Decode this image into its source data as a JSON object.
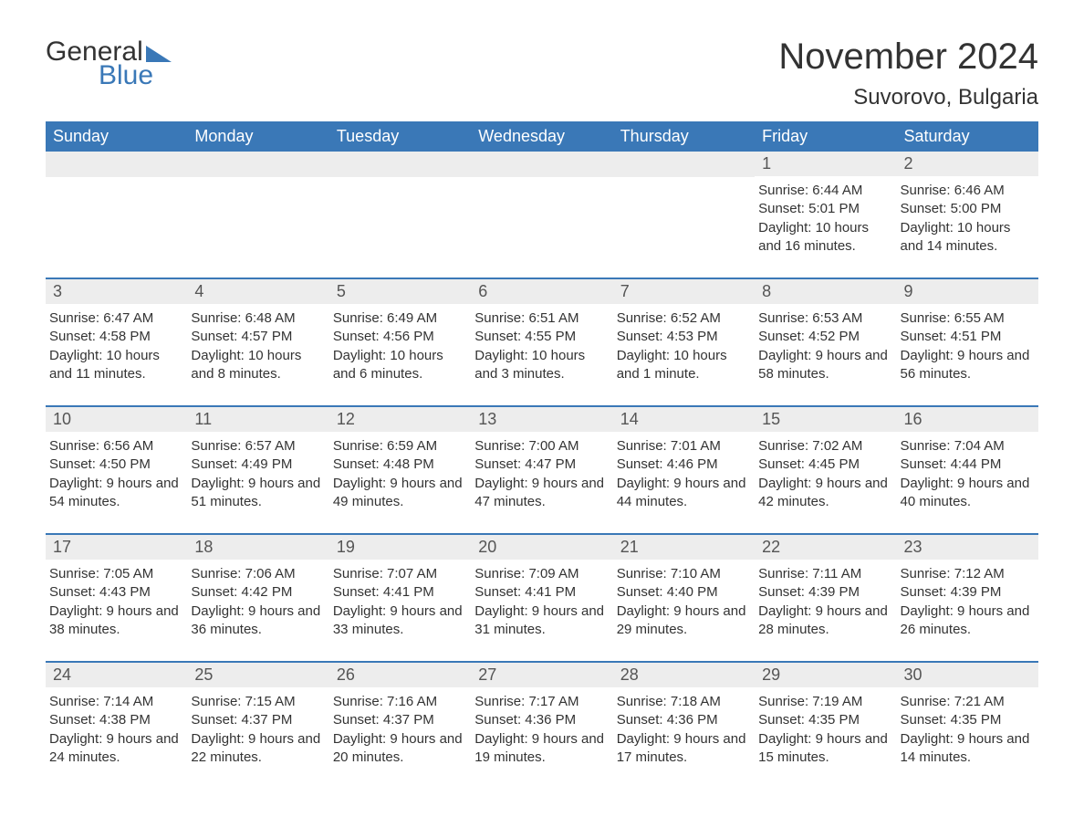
{
  "logo": {
    "word1": "General",
    "word2": "Blue"
  },
  "title": "November 2024",
  "location": "Suvorovo, Bulgaria",
  "weekday_labels": [
    "Sunday",
    "Monday",
    "Tuesday",
    "Wednesday",
    "Thursday",
    "Friday",
    "Saturday"
  ],
  "colors": {
    "accent": "#3a78b7",
    "header_text": "#ffffff",
    "daynum_bg": "#ededed",
    "text": "#333333",
    "background": "#ffffff"
  },
  "typography": {
    "title_fontsize": 40,
    "location_fontsize": 24,
    "weekday_fontsize": 18,
    "daynum_fontsize": 18,
    "body_fontsize": 15
  },
  "layout": {
    "columns": 7,
    "rows": 5,
    "first_weekday": "Sunday"
  },
  "labels": {
    "sunrise": "Sunrise",
    "sunset": "Sunset",
    "daylight": "Daylight"
  },
  "weeks": [
    [
      {
        "empty": true
      },
      {
        "empty": true
      },
      {
        "empty": true
      },
      {
        "empty": true
      },
      {
        "empty": true
      },
      {
        "day": "1",
        "sunrise": "6:44 AM",
        "sunset": "5:01 PM",
        "daylight": "10 hours and 16 minutes."
      },
      {
        "day": "2",
        "sunrise": "6:46 AM",
        "sunset": "5:00 PM",
        "daylight": "10 hours and 14 minutes."
      }
    ],
    [
      {
        "day": "3",
        "sunrise": "6:47 AM",
        "sunset": "4:58 PM",
        "daylight": "10 hours and 11 minutes."
      },
      {
        "day": "4",
        "sunrise": "6:48 AM",
        "sunset": "4:57 PM",
        "daylight": "10 hours and 8 minutes."
      },
      {
        "day": "5",
        "sunrise": "6:49 AM",
        "sunset": "4:56 PM",
        "daylight": "10 hours and 6 minutes."
      },
      {
        "day": "6",
        "sunrise": "6:51 AM",
        "sunset": "4:55 PM",
        "daylight": "10 hours and 3 minutes."
      },
      {
        "day": "7",
        "sunrise": "6:52 AM",
        "sunset": "4:53 PM",
        "daylight": "10 hours and 1 minute."
      },
      {
        "day": "8",
        "sunrise": "6:53 AM",
        "sunset": "4:52 PM",
        "daylight": "9 hours and 58 minutes."
      },
      {
        "day": "9",
        "sunrise": "6:55 AM",
        "sunset": "4:51 PM",
        "daylight": "9 hours and 56 minutes."
      }
    ],
    [
      {
        "day": "10",
        "sunrise": "6:56 AM",
        "sunset": "4:50 PM",
        "daylight": "9 hours and 54 minutes."
      },
      {
        "day": "11",
        "sunrise": "6:57 AM",
        "sunset": "4:49 PM",
        "daylight": "9 hours and 51 minutes."
      },
      {
        "day": "12",
        "sunrise": "6:59 AM",
        "sunset": "4:48 PM",
        "daylight": "9 hours and 49 minutes."
      },
      {
        "day": "13",
        "sunrise": "7:00 AM",
        "sunset": "4:47 PM",
        "daylight": "9 hours and 47 minutes."
      },
      {
        "day": "14",
        "sunrise": "7:01 AM",
        "sunset": "4:46 PM",
        "daylight": "9 hours and 44 minutes."
      },
      {
        "day": "15",
        "sunrise": "7:02 AM",
        "sunset": "4:45 PM",
        "daylight": "9 hours and 42 minutes."
      },
      {
        "day": "16",
        "sunrise": "7:04 AM",
        "sunset": "4:44 PM",
        "daylight": "9 hours and 40 minutes."
      }
    ],
    [
      {
        "day": "17",
        "sunrise": "7:05 AM",
        "sunset": "4:43 PM",
        "daylight": "9 hours and 38 minutes."
      },
      {
        "day": "18",
        "sunrise": "7:06 AM",
        "sunset": "4:42 PM",
        "daylight": "9 hours and 36 minutes."
      },
      {
        "day": "19",
        "sunrise": "7:07 AM",
        "sunset": "4:41 PM",
        "daylight": "9 hours and 33 minutes."
      },
      {
        "day": "20",
        "sunrise": "7:09 AM",
        "sunset": "4:41 PM",
        "daylight": "9 hours and 31 minutes."
      },
      {
        "day": "21",
        "sunrise": "7:10 AM",
        "sunset": "4:40 PM",
        "daylight": "9 hours and 29 minutes."
      },
      {
        "day": "22",
        "sunrise": "7:11 AM",
        "sunset": "4:39 PM",
        "daylight": "9 hours and 28 minutes."
      },
      {
        "day": "23",
        "sunrise": "7:12 AM",
        "sunset": "4:39 PM",
        "daylight": "9 hours and 26 minutes."
      }
    ],
    [
      {
        "day": "24",
        "sunrise": "7:14 AM",
        "sunset": "4:38 PM",
        "daylight": "9 hours and 24 minutes."
      },
      {
        "day": "25",
        "sunrise": "7:15 AM",
        "sunset": "4:37 PM",
        "daylight": "9 hours and 22 minutes."
      },
      {
        "day": "26",
        "sunrise": "7:16 AM",
        "sunset": "4:37 PM",
        "daylight": "9 hours and 20 minutes."
      },
      {
        "day": "27",
        "sunrise": "7:17 AM",
        "sunset": "4:36 PM",
        "daylight": "9 hours and 19 minutes."
      },
      {
        "day": "28",
        "sunrise": "7:18 AM",
        "sunset": "4:36 PM",
        "daylight": "9 hours and 17 minutes."
      },
      {
        "day": "29",
        "sunrise": "7:19 AM",
        "sunset": "4:35 PM",
        "daylight": "9 hours and 15 minutes."
      },
      {
        "day": "30",
        "sunrise": "7:21 AM",
        "sunset": "4:35 PM",
        "daylight": "9 hours and 14 minutes."
      }
    ]
  ]
}
